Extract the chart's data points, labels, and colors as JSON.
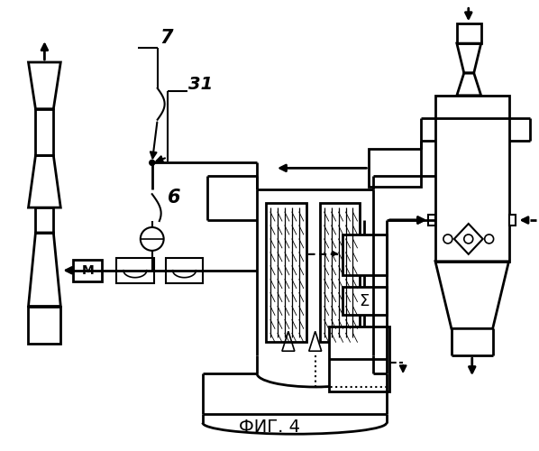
{
  "title": "ФИГ. 4",
  "bg_color": "#ffffff",
  "lc": "#000000",
  "label_7": "7",
  "label_31": "31",
  "label_6": "6",
  "label_M": "M",
  "label_sigma": "Σ"
}
